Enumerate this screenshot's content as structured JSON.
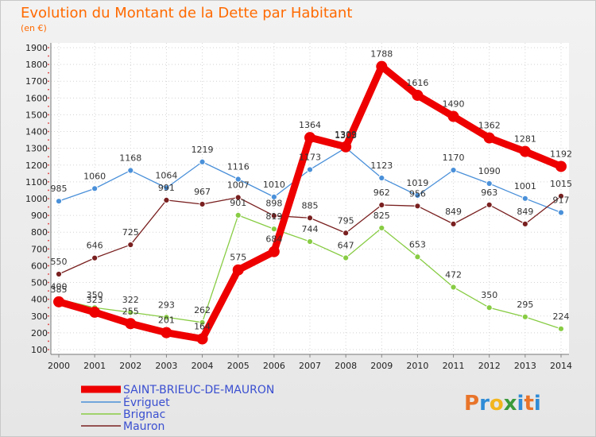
{
  "header": {
    "title": "Evolution du Montant de la Dette par Habitant",
    "subtitle": "(en €)"
  },
  "logo": {
    "letters": [
      "P",
      "r",
      "o",
      "x",
      "i",
      "t",
      "i"
    ],
    "colors": [
      "#e8742a",
      "#2e8bd6",
      "#f2b51c",
      "#3a9a3a",
      "#2e8bd6",
      "#e8742a",
      "#2e8bd6"
    ]
  },
  "chart_data": {
    "type": "line",
    "title": "Evolution du Montant de la Dette par Habitant",
    "subtitle": "(en €)",
    "xlabel": "",
    "ylabel": "",
    "categories": [
      "2000",
      "2001",
      "2002",
      "2003",
      "2004",
      "2005",
      "2006",
      "2007",
      "2008",
      "2009",
      "2010",
      "2011",
      "2012",
      "2013",
      "2014"
    ],
    "yticks": [
      "100",
      "200",
      "300",
      "400",
      "500",
      "600",
      "700",
      "800",
      "900",
      "1000",
      "1100",
      "1200",
      "1300",
      "1400",
      "1500",
      "1600",
      "1700",
      "1800",
      "1900"
    ],
    "ylim": [
      100,
      1900
    ],
    "grid": true,
    "legend_position": "bottom-left",
    "series": [
      {
        "name": "SAINT-BRIEUC-DE-MAURON",
        "color": "#ee0000",
        "values": [
          385,
          323,
          255,
          201,
          164,
          575,
          684,
          1364,
          1309,
          1788,
          1616,
          1490,
          1362,
          1281,
          1192
        ],
        "labels": [
          "385",
          "323",
          "255",
          "201",
          "164",
          "575",
          "684",
          "1364",
          "1309",
          "1788",
          "1616",
          "1490",
          "1362",
          "1281",
          "1192"
        ]
      },
      {
        "name": "Évriguet",
        "color": "#4a90d9",
        "values": [
          985,
          1060,
          1168,
          1064,
          1219,
          1116,
          1010,
          1173,
          1303,
          1123,
          1019,
          1170,
          1090,
          1001,
          917
        ],
        "labels": [
          "985",
          "1060",
          "1168",
          "1064",
          "1219",
          "1116",
          "1010",
          "1173",
          "1303",
          "1123",
          "1019",
          "1170",
          "1090",
          "1001",
          "917"
        ]
      },
      {
        "name": "Brignac",
        "color": "#88cc44",
        "values": [
          400,
          350,
          322,
          293,
          262,
          901,
          819,
          744,
          647,
          825,
          653,
          472,
          350,
          295,
          224
        ],
        "labels": [
          "400",
          "350",
          "322",
          "293",
          "262",
          "901",
          "819",
          "744",
          "647",
          "825",
          "653",
          "472",
          "350",
          "295",
          "224"
        ]
      },
      {
        "name": "Mauron",
        "color": "#7a2020",
        "values": [
          550,
          646,
          725,
          991,
          967,
          1007,
          898,
          885,
          795,
          962,
          956,
          849,
          963,
          849,
          1015
        ],
        "labels": [
          "550",
          "646",
          "725",
          "991",
          "967",
          "1007",
          "898",
          "885",
          "795",
          "962",
          "956",
          "849",
          "963",
          "849",
          "1015"
        ]
      }
    ]
  }
}
